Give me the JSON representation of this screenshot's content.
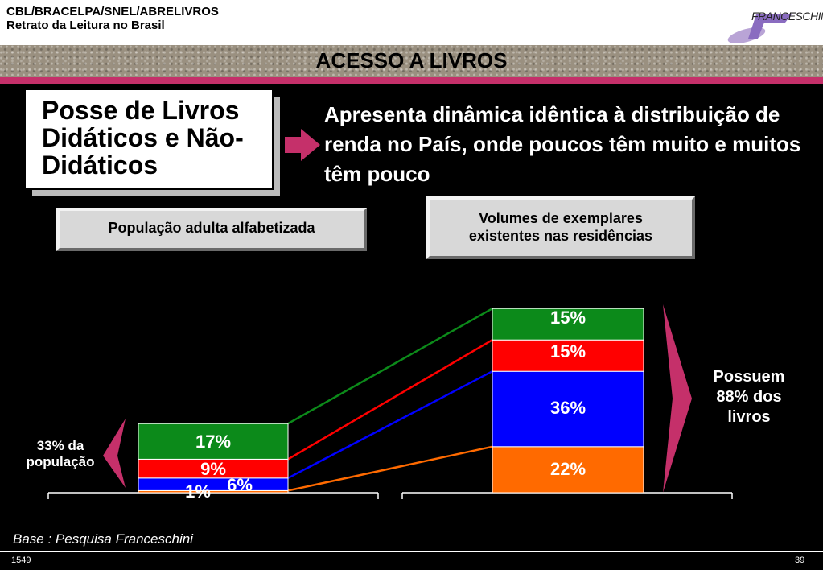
{
  "header": {
    "org_line": "CBL/BRACELPA/SNEL/ABRELIVROS",
    "subtitle_line": "Retrato da Leitura no Brasil",
    "logo_text": "FRANCESCHINI",
    "page_title": "ACESSO A LIVROS"
  },
  "main_box": {
    "title": "Posse de Livros Didáticos e Não-Didáticos"
  },
  "right_statement": "Apresenta dinâmica idêntica à distribuição de renda no País, onde poucos têm muito e muitos têm pouco",
  "colors": {
    "green": "#0c8a1a",
    "red": "#ff0000",
    "blue": "#0000ff",
    "orange": "#ff6a00",
    "accent": "#c5306a"
  },
  "chart_data": {
    "type": "bar",
    "stacked": true,
    "categories": [
      "População adulta alfabetizada",
      "Volumes de exemplares existentes nas residências"
    ],
    "series": [
      {
        "color": "#ff6a00",
        "values": [
          1,
          22
        ],
        "labels": [
          "1%",
          "22%"
        ]
      },
      {
        "color": "#0000ff",
        "values": [
          6,
          36
        ],
        "labels": [
          "6%",
          "36%"
        ]
      },
      {
        "color": "#ff0000",
        "values": [
          9,
          15
        ],
        "labels": [
          "9%",
          "15%"
        ]
      },
      {
        "color": "#0c8a1a",
        "values": [
          17,
          15
        ],
        "labels": [
          "17%",
          "15%"
        ]
      }
    ],
    "annotations": {
      "left": "33% da população",
      "right": "Possuem 88% dos livros"
    }
  },
  "footer": {
    "source": "Base : Pesquisa Franceschini",
    "code": "1549",
    "page_number": "39"
  }
}
